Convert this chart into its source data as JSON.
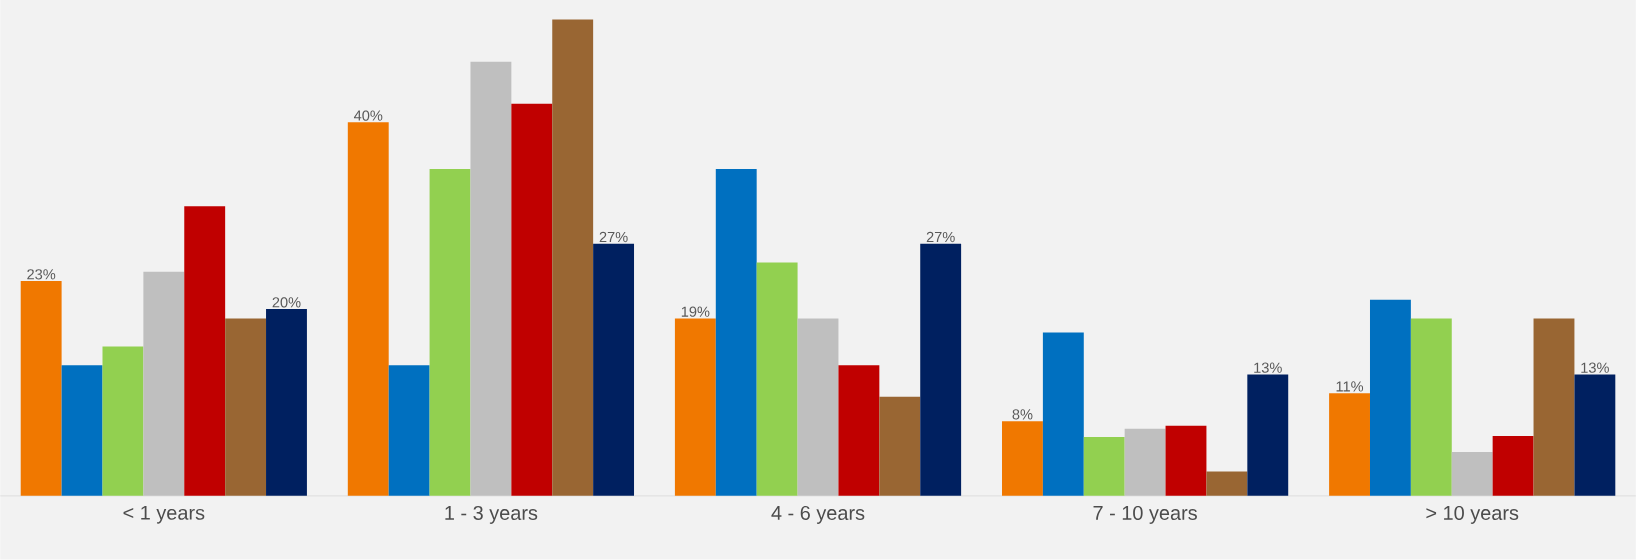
{
  "chart_data": {
    "type": "bar",
    "categories": [
      "< 1 years",
      "1 - 3 years",
      "4 - 6 years",
      "7 - 10 years",
      "> 10 years"
    ],
    "series": [
      {
        "color": "#f07800",
        "values": [
          23,
          40,
          19,
          8,
          11
        ],
        "value_labels": [
          "23%",
          "40%",
          "19%",
          "8%",
          "11%"
        ]
      },
      {
        "color": "#0070c0",
        "values": [
          14,
          14,
          35,
          17.5,
          21
        ]
      },
      {
        "color": "#92d050",
        "values": [
          16,
          35,
          25,
          6.3,
          19
        ]
      },
      {
        "color": "#bfbfbf",
        "values": [
          24,
          46.5,
          19,
          7.2,
          4.7
        ]
      },
      {
        "color": "#c00000",
        "values": [
          31,
          42,
          14,
          7.5,
          6.4
        ]
      },
      {
        "color": "#996633",
        "values": [
          19,
          51,
          10.6,
          2.6,
          19
        ]
      },
      {
        "color": "#002060",
        "values": [
          20,
          27,
          27,
          13,
          13
        ],
        "value_labels": [
          "20%",
          "27%",
          "27%",
          "13%",
          "13%"
        ]
      }
    ]
  }
}
